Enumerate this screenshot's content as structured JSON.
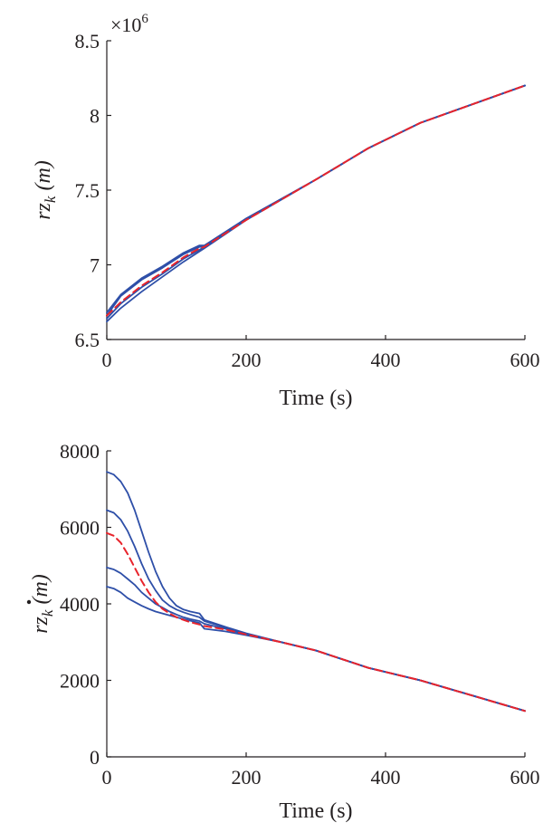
{
  "chart_data": [
    {
      "type": "line",
      "xlabel": "Time (s)",
      "ylabel": {
        "base": "rz",
        "subscript": "k",
        "unit": "(m)",
        "dot": false
      },
      "y_multiplier": {
        "base": "×10",
        "exponent": "6"
      },
      "xlim": [
        0,
        600
      ],
      "ylim": [
        6.5,
        8.5
      ],
      "xticks": [
        "0",
        "200",
        "400",
        "600"
      ],
      "yticks": [
        "6.5",
        "7",
        "7.5",
        "8",
        "8.5"
      ],
      "colors": {
        "estimates": "#2e4fa8",
        "reference": "#e8242c"
      },
      "series": [
        {
          "style": "solid",
          "x": [
            0,
            20,
            50,
            80,
            110,
            133,
            140,
            200,
            300,
            375,
            450,
            600
          ],
          "y": [
            6.62,
            6.71,
            6.82,
            6.92,
            7.02,
            7.09,
            7.11,
            7.3,
            7.57,
            7.78,
            7.95,
            8.2
          ]
        },
        {
          "style": "solid",
          "x": [
            0,
            20,
            50,
            80,
            110,
            133,
            140,
            200,
            300,
            375,
            450,
            600
          ],
          "y": [
            6.64,
            6.74,
            6.85,
            6.94,
            7.04,
            7.1,
            7.12,
            7.3,
            7.57,
            7.78,
            7.95,
            8.2
          ]
        },
        {
          "style": "solid",
          "x": [
            0,
            20,
            50,
            80,
            110,
            133,
            140,
            200,
            300,
            375,
            450,
            600
          ],
          "y": [
            6.66,
            6.79,
            6.9,
            6.98,
            7.07,
            7.12,
            7.12,
            7.31,
            7.57,
            7.78,
            7.95,
            8.2
          ]
        },
        {
          "style": "solid",
          "x": [
            0,
            20,
            50,
            80,
            110,
            133,
            140,
            200,
            300,
            375,
            450,
            600
          ],
          "y": [
            6.68,
            6.8,
            6.91,
            6.99,
            7.08,
            7.13,
            7.13,
            7.31,
            7.57,
            7.78,
            7.95,
            8.2
          ]
        },
        {
          "style": "dashed",
          "x": [
            0,
            20,
            50,
            80,
            110,
            133,
            140,
            200,
            300,
            375,
            450,
            600
          ],
          "y": [
            6.66,
            6.75,
            6.86,
            6.95,
            7.05,
            7.11,
            7.12,
            7.3,
            7.57,
            7.78,
            7.95,
            8.2
          ]
        }
      ]
    },
    {
      "type": "line",
      "xlabel": "Time (s)",
      "ylabel": {
        "base": "rz",
        "subscript": "k",
        "unit": "(m)",
        "dot": true
      },
      "xlim": [
        0,
        600
      ],
      "ylim": [
        0,
        8000
      ],
      "xticks": [
        "0",
        "200",
        "400",
        "600"
      ],
      "yticks": [
        "0",
        "2000",
        "4000",
        "6000",
        "8000"
      ],
      "colors": {
        "estimates": "#2e4fa8",
        "reference": "#e8242c"
      },
      "series": [
        {
          "style": "solid",
          "x": [
            0,
            10,
            20,
            30,
            40,
            50,
            60,
            70,
            80,
            90,
            100,
            110,
            120,
            133,
            140,
            170,
            200,
            250,
            300,
            375,
            450,
            525,
            600
          ],
          "y": [
            7450,
            7380,
            7200,
            6900,
            6450,
            5900,
            5350,
            4850,
            4450,
            4150,
            3950,
            3850,
            3800,
            3750,
            3580,
            3400,
            3230,
            3000,
            2780,
            2330,
            2000,
            1600,
            1200
          ]
        },
        {
          "style": "solid",
          "x": [
            0,
            10,
            20,
            30,
            40,
            50,
            60,
            70,
            80,
            90,
            100,
            110,
            120,
            133,
            140,
            170,
            200,
            250,
            300,
            375,
            450,
            525,
            600
          ],
          "y": [
            6450,
            6380,
            6200,
            5900,
            5500,
            5050,
            4650,
            4350,
            4100,
            3950,
            3850,
            3780,
            3720,
            3650,
            3550,
            3380,
            3220,
            3000,
            2780,
            2330,
            2000,
            1600,
            1200
          ]
        },
        {
          "style": "solid",
          "x": [
            0,
            10,
            20,
            30,
            40,
            50,
            60,
            70,
            80,
            90,
            100,
            110,
            120,
            133,
            140,
            170,
            200,
            250,
            300,
            375,
            450,
            525,
            600
          ],
          "y": [
            4950,
            4900,
            4800,
            4650,
            4500,
            4300,
            4150,
            4000,
            3900,
            3800,
            3720,
            3650,
            3600,
            3550,
            3480,
            3350,
            3200,
            3000,
            2780,
            2330,
            2000,
            1600,
            1200
          ]
        },
        {
          "style": "solid",
          "x": [
            0,
            10,
            20,
            30,
            40,
            50,
            60,
            70,
            80,
            90,
            100,
            110,
            120,
            133,
            140,
            170,
            200,
            250,
            300,
            375,
            450,
            525,
            600
          ],
          "y": [
            4450,
            4400,
            4300,
            4150,
            4050,
            3950,
            3870,
            3800,
            3750,
            3700,
            3650,
            3600,
            3560,
            3500,
            3350,
            3280,
            3180,
            3000,
            2780,
            2330,
            2000,
            1600,
            1200
          ]
        },
        {
          "style": "dashed",
          "x": [
            0,
            10,
            20,
            30,
            40,
            50,
            60,
            70,
            80,
            90,
            100,
            110,
            120,
            133,
            140,
            170,
            200,
            250,
            300,
            375,
            450,
            525,
            600
          ],
          "y": [
            5850,
            5780,
            5600,
            5300,
            4950,
            4600,
            4300,
            4050,
            3870,
            3750,
            3650,
            3580,
            3520,
            3460,
            3420,
            3330,
            3200,
            3000,
            2780,
            2330,
            2000,
            1600,
            1200
          ]
        }
      ]
    }
  ]
}
